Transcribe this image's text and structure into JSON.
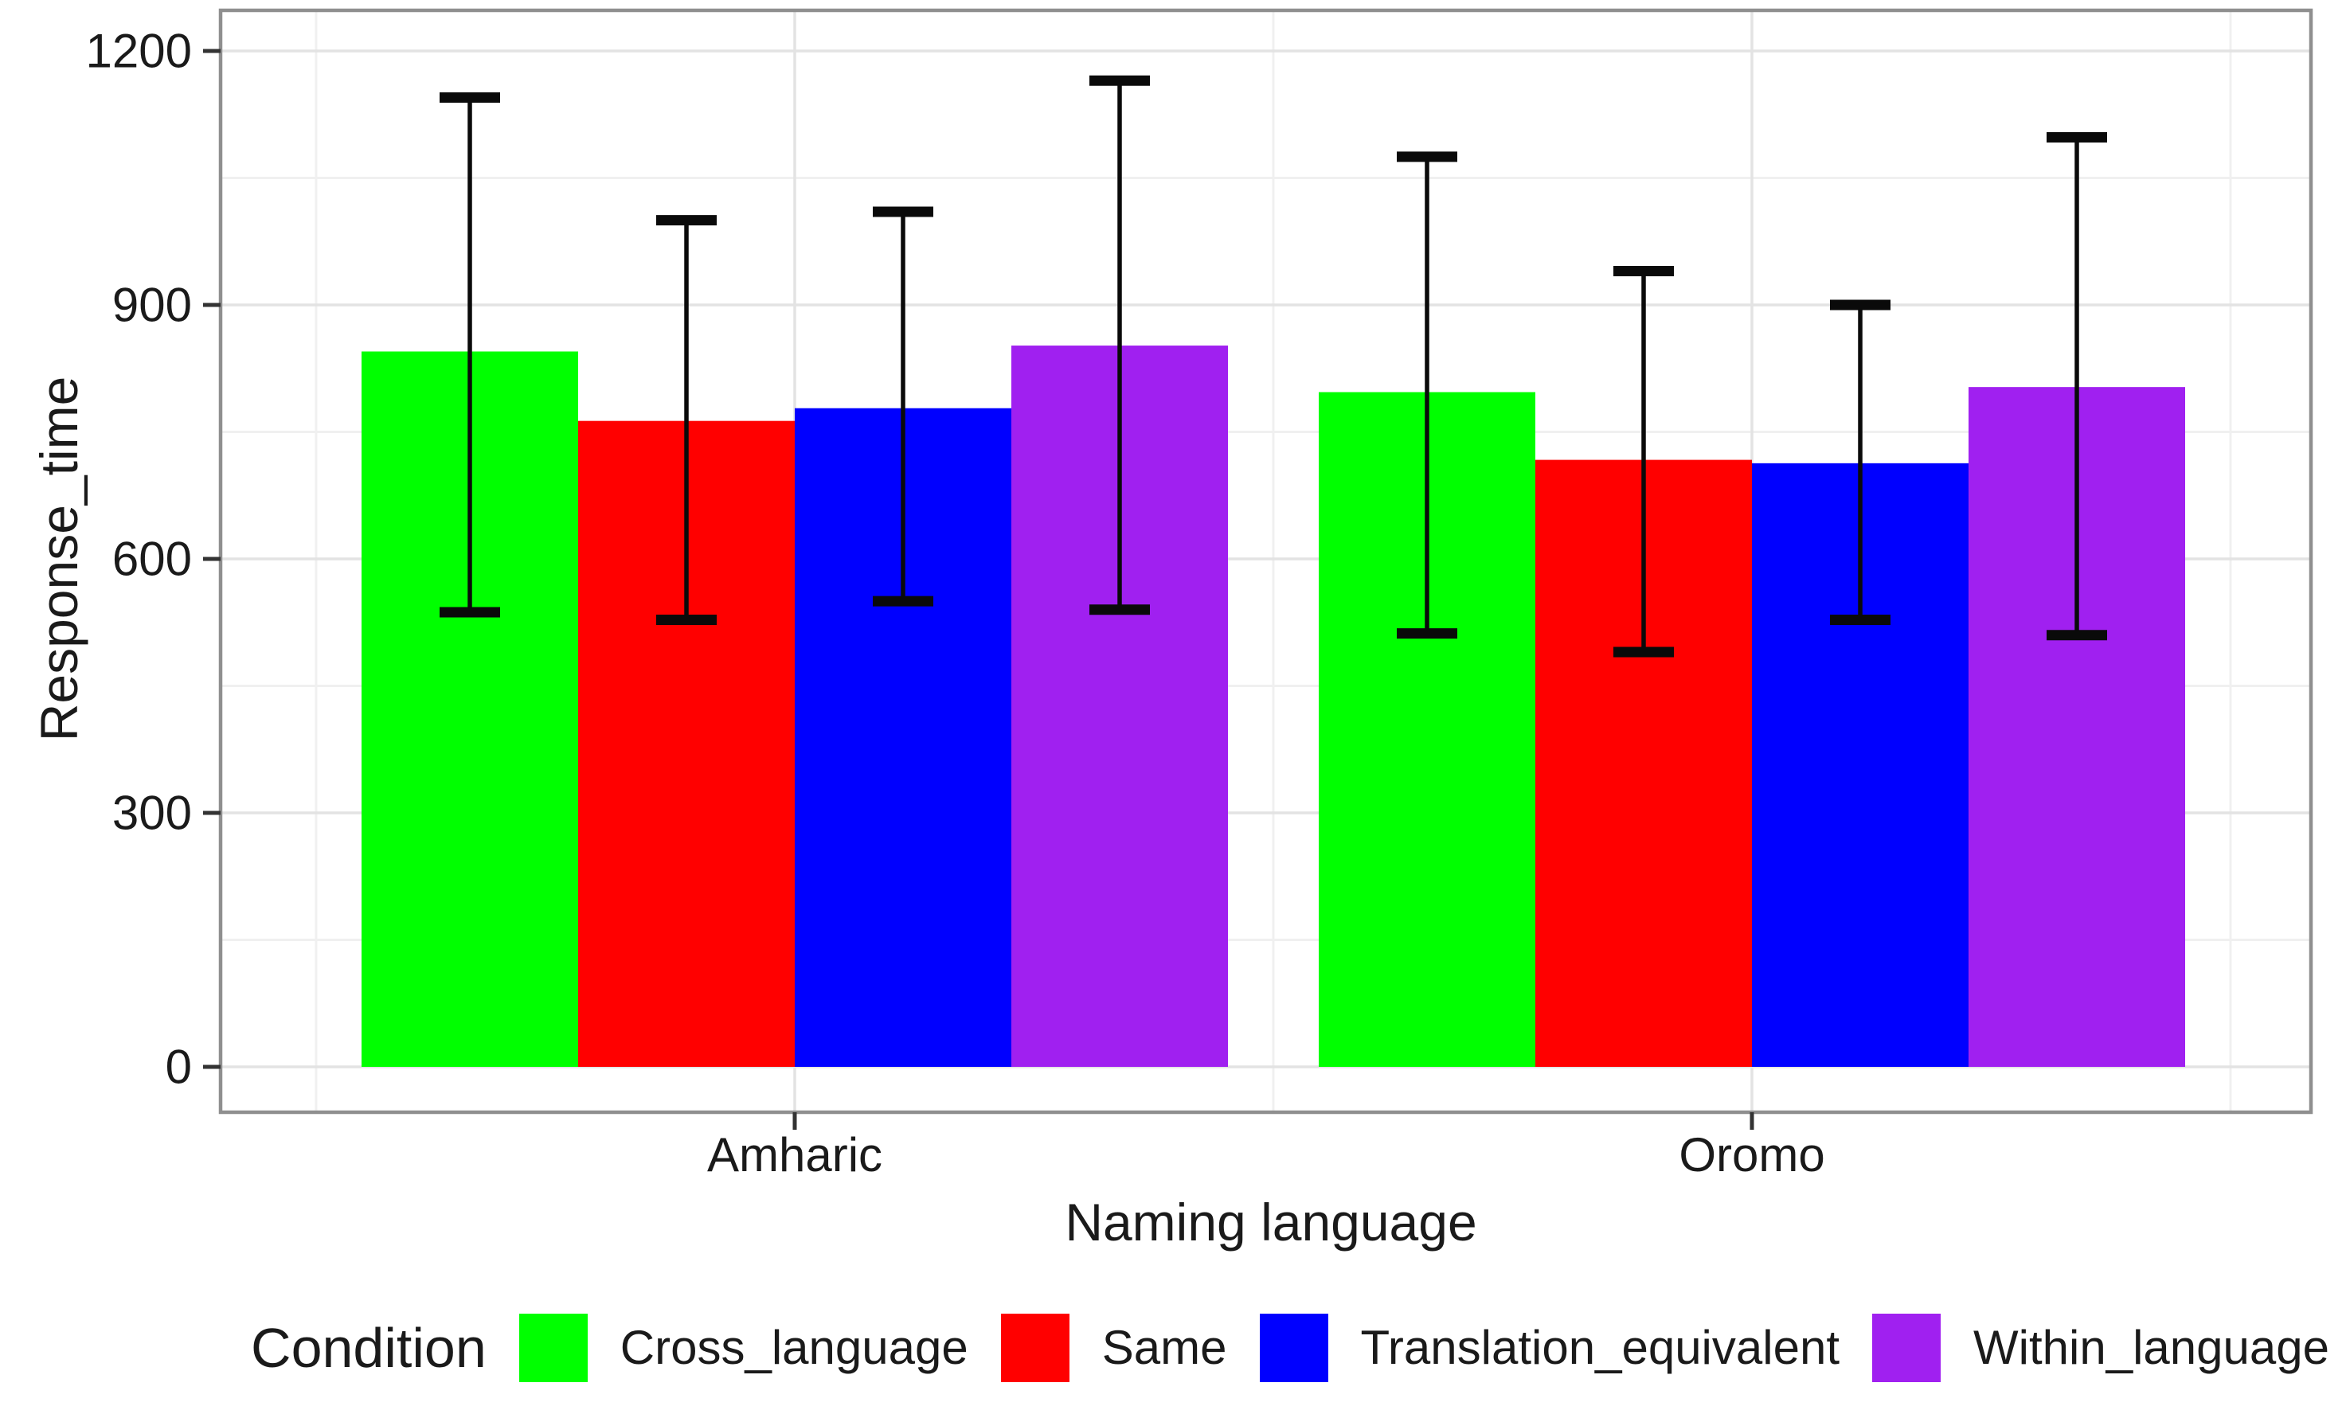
{
  "chart_data": {
    "type": "bar",
    "title": "",
    "xlabel": "Naming language",
    "ylabel": "Response_time",
    "categories": [
      "Amharic",
      "Oromo"
    ],
    "y_ticks": [
      0,
      300,
      600,
      900,
      1200
    ],
    "ylim": [
      0,
      1200
    ],
    "grid": "major+minor",
    "legend_title": "Condition",
    "legend_position": "bottom",
    "series": [
      {
        "name": "Cross_language",
        "color": "#00FF00",
        "values": [
          845,
          797
        ],
        "error_low": [
          537,
          512
        ],
        "error_high": [
          1145,
          1075
        ]
      },
      {
        "name": "Same",
        "color": "#FF0000",
        "values": [
          763,
          717
        ],
        "error_low": [
          528,
          490
        ],
        "error_high": [
          1000,
          940
        ]
      },
      {
        "name": "Translation_equivalent",
        "color": "#0000FF",
        "values": [
          778,
          713
        ],
        "error_low": [
          550,
          528
        ],
        "error_high": [
          1010,
          900
        ]
      },
      {
        "name": "Within_language",
        "color": "#A020F0",
        "values": [
          852,
          803
        ],
        "error_low": [
          540,
          510
        ],
        "error_high": [
          1165,
          1098
        ]
      }
    ],
    "style": {
      "panel_border": "#8f8f8f",
      "grid_major": "#e3e3e3",
      "grid_minor": "#f0f0f0",
      "tick_color": "#333333",
      "error_color": "#0a0a0a",
      "text_color": "#1a1a1a"
    }
  }
}
